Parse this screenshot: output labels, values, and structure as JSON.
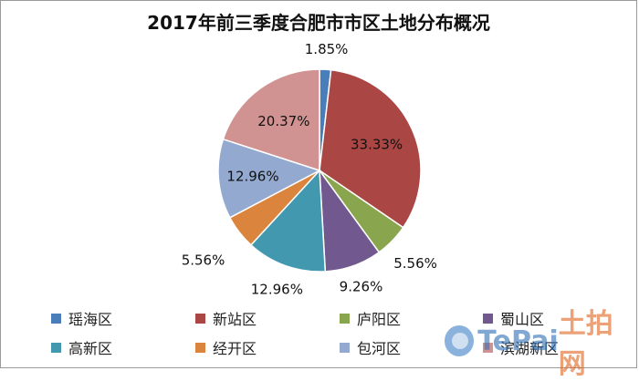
{
  "chart_data": {
    "type": "pie",
    "title": "2017年前三季度合肥市市区土地分布概况",
    "slices": [
      {
        "name": "瑶海区",
        "value": 1.85,
        "label": "1.85%",
        "color": "#4a7ebb"
      },
      {
        "name": "新站区",
        "value": 33.33,
        "label": "33.33%",
        "color": "#aa4643"
      },
      {
        "name": "庐阳区",
        "value": 5.56,
        "label": "5.56%",
        "color": "#89a54e"
      },
      {
        "name": "蜀山区",
        "value": 9.26,
        "label": "9.26%",
        "color": "#71588f"
      },
      {
        "name": "高新区",
        "value": 12.96,
        "label": "12.96%",
        "color": "#4198af"
      },
      {
        "name": "经开区",
        "value": 5.56,
        "label": "5.56%",
        "color": "#db843d"
      },
      {
        "name": "包河区",
        "value": 12.96,
        "label": "12.96%",
        "color": "#93a9cf"
      },
      {
        "name": "滨湖新区",
        "value": 20.37,
        "label": "20.37%",
        "color": "#d19392"
      }
    ],
    "legend_position": "bottom"
  },
  "watermark": {
    "part1": "TePai",
    "part2": "土拍网"
  }
}
